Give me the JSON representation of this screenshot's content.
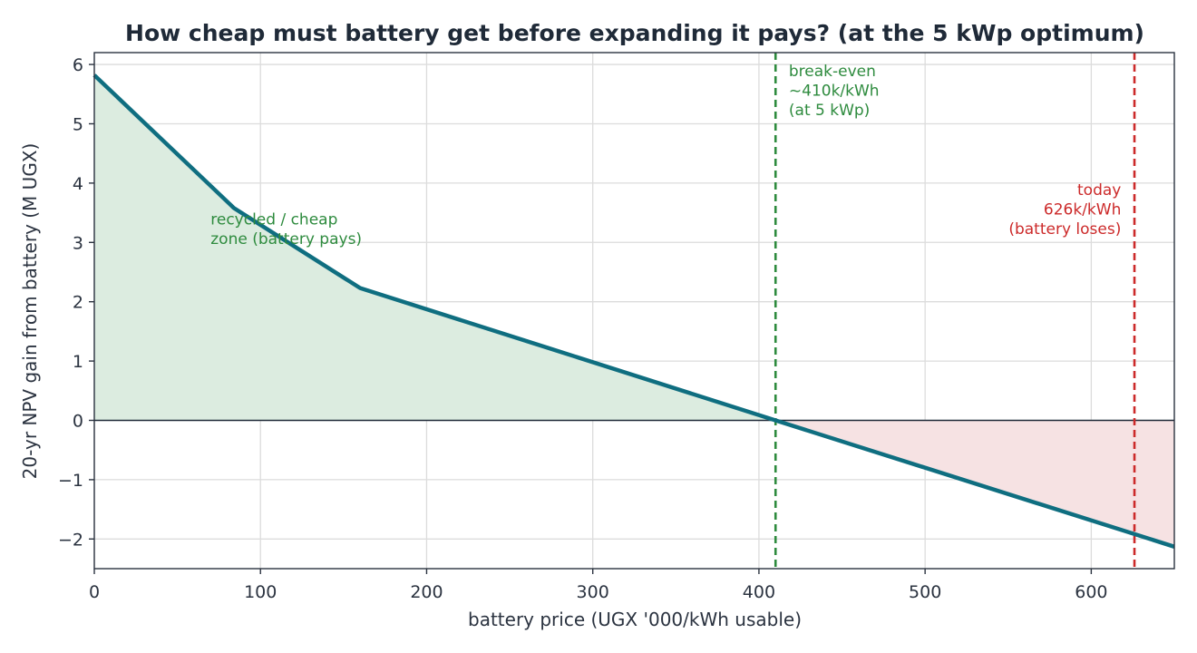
{
  "chart_data": {
    "type": "area",
    "title": "How cheap must battery get before expanding it pays? (at the 5 kWp optimum)",
    "xlabel": "battery price (UGX '000/kWh usable)",
    "ylabel": "20-yr NPV gain from battery (M UGX)",
    "xlim": [
      0,
      650
    ],
    "ylim": [
      -2.5,
      6.2
    ],
    "x_ticks": [
      0,
      100,
      200,
      300,
      400,
      500,
      600
    ],
    "y_ticks": [
      -2,
      -1,
      0,
      1,
      2,
      3,
      4,
      5,
      6
    ],
    "y_tick_labels": [
      "−2",
      "−1",
      "0",
      "1",
      "2",
      "3",
      "4",
      "5",
      "6"
    ],
    "grid": true,
    "series": [
      {
        "x": [
          0,
          84,
          160,
          410,
          650
        ],
        "y": [
          5.82,
          3.58,
          2.23,
          0.0,
          -2.13
        ],
        "color": "#0f6e80"
      }
    ],
    "fill_positive_color": "#dcece0",
    "fill_negative_color": "#f6e2e3",
    "reference_lines": [
      {
        "x": 410,
        "color": "#2e8b3e",
        "style": "dashed"
      },
      {
        "x": 626,
        "color": "#cc2a2a",
        "style": "dashed"
      }
    ],
    "annotations": [
      {
        "lines": [
          "break-even",
          "~410k/kWh",
          "(at 5 kWp)"
        ],
        "x": 418,
        "y": 5.8,
        "align": "start",
        "color": "#2e8b3e"
      },
      {
        "lines": [
          "today",
          "626k/kWh",
          "(battery loses)"
        ],
        "x": 618,
        "y": 3.8,
        "align": "end",
        "color": "#cc2a2a"
      },
      {
        "lines": [
          "recycled / cheap",
          "zone (battery pays)"
        ],
        "x": 70,
        "y": 3.3,
        "align": "start",
        "color": "#2e8b3e"
      }
    ]
  }
}
